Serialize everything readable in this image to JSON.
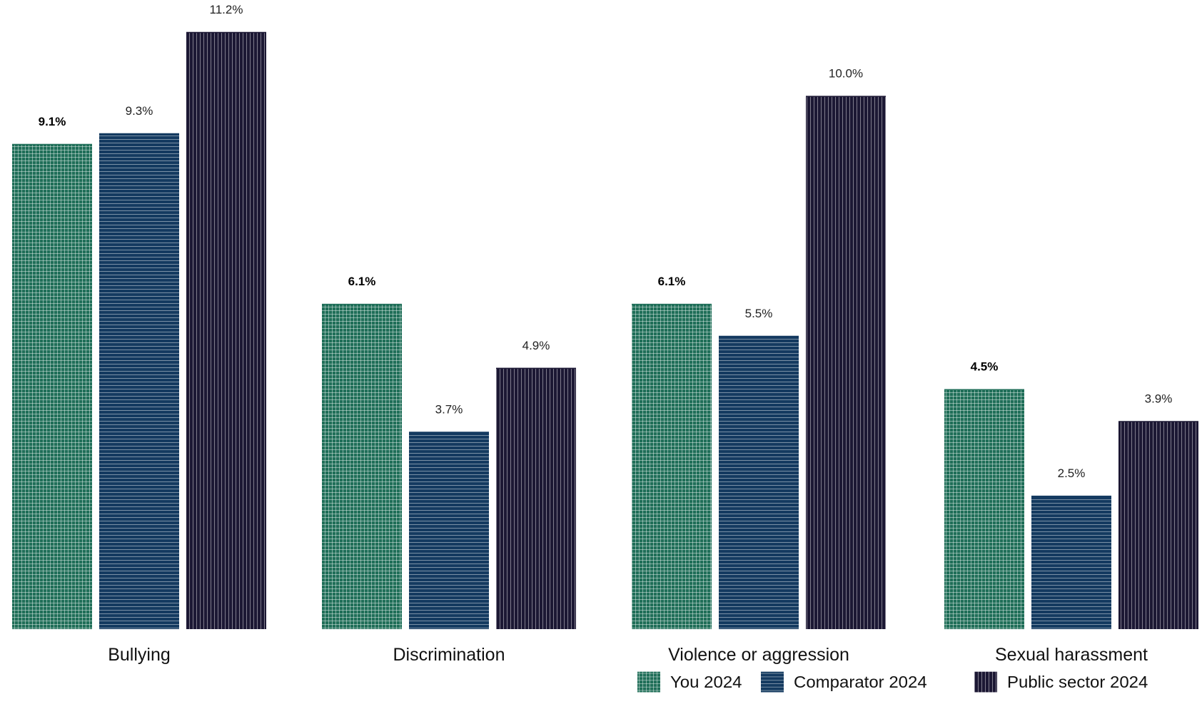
{
  "chart_data": {
    "type": "bar",
    "categories": [
      "Bullying",
      "Discrimination",
      "Violence or aggression",
      "Sexual harassment"
    ],
    "series": [
      {
        "name": "You 2024",
        "values": [
          9.1,
          6.1,
          6.1,
          4.5
        ],
        "labels": [
          "9.1%",
          "6.1%",
          "6.1%",
          "4.5%"
        ],
        "color": "#1f6e58",
        "pattern": "grid",
        "bold_labels": true
      },
      {
        "name": "Comparator 2024",
        "values": [
          9.3,
          3.7,
          5.5,
          2.5
        ],
        "labels": [
          "9.3%",
          "3.7%",
          "5.5%",
          "2.5%"
        ],
        "color": "#143a60",
        "pattern": "horizontal-lines",
        "bold_labels": false
      },
      {
        "name": "Public sector 2024",
        "values": [
          11.2,
          4.9,
          10.0,
          3.9
        ],
        "labels": [
          "11.2%",
          "4.9%",
          "10.0%",
          "3.9%"
        ],
        "color": "#1c1834",
        "pattern": "vertical-lines",
        "bold_labels": false
      }
    ],
    "title": "",
    "xlabel": "",
    "ylabel": "",
    "ylim": [
      0,
      11.2
    ],
    "grid": false,
    "legend_position": "bottom-right"
  }
}
